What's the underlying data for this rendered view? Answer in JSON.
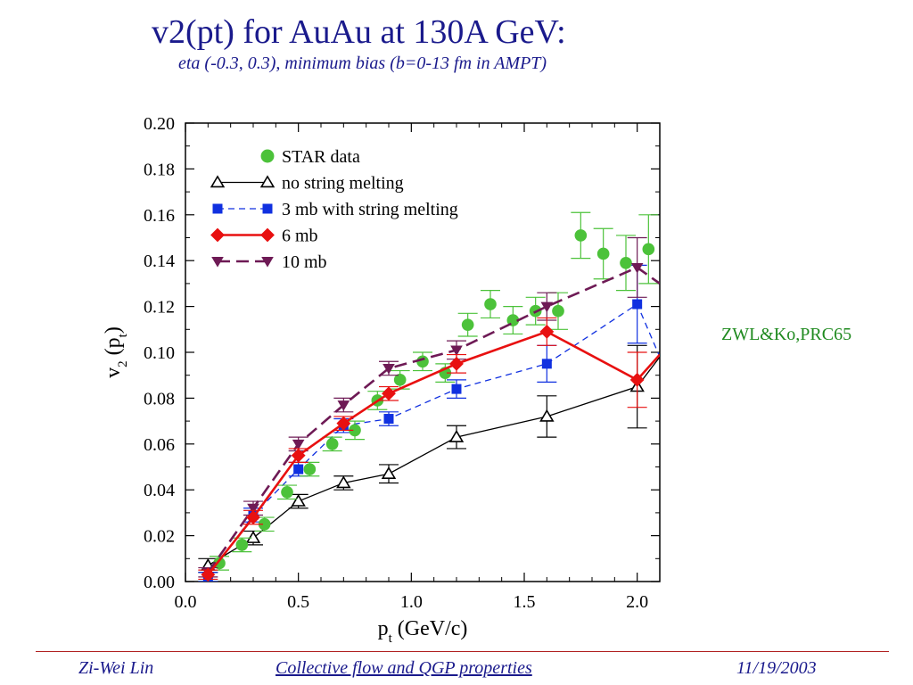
{
  "slide": {
    "title": "v2(pt) for AuAu at 130A GeV:",
    "subtitle": "eta (-0.3, 0.3), minimum bias (b=0-13 fm in AMPT)",
    "reference": "ZWL&Ko,PRC65",
    "footer": {
      "left": "Zi-Wei Lin",
      "center": "Collective flow and QGP properties",
      "right": "11/19/2003"
    }
  },
  "chart_data": {
    "type": "scatter",
    "xlabel": "p_t (GeV/c)",
    "ylabel": "v_2 (p_t)",
    "xlim": [
      0.0,
      2.1
    ],
    "ylim": [
      0.0,
      0.2
    ],
    "xticks": [
      "0.0",
      "0.5",
      "1.0",
      "1.5",
      "2.0"
    ],
    "yticks": [
      "0.00",
      "0.02",
      "0.04",
      "0.06",
      "0.08",
      "0.10",
      "0.12",
      "0.14",
      "0.16",
      "0.18",
      "0.20"
    ],
    "legend_position": "top-left",
    "series": [
      {
        "name": "STAR data",
        "color": "#4cc23a",
        "marker": "circle",
        "line": "none",
        "x": [
          0.15,
          0.25,
          0.35,
          0.45,
          0.55,
          0.65,
          0.75,
          0.85,
          0.95,
          1.05,
          1.15,
          1.25,
          1.35,
          1.45,
          1.55,
          1.65,
          1.75,
          1.85,
          1.95,
          2.05
        ],
        "y": [
          0.008,
          0.016,
          0.025,
          0.039,
          0.049,
          0.06,
          0.066,
          0.079,
          0.088,
          0.096,
          0.091,
          0.112,
          0.121,
          0.114,
          0.118,
          0.118,
          0.151,
          0.143,
          0.139,
          0.145
        ],
        "err": [
          0.003,
          0.003,
          0.003,
          0.003,
          0.003,
          0.003,
          0.004,
          0.004,
          0.004,
          0.004,
          0.004,
          0.005,
          0.006,
          0.006,
          0.006,
          0.008,
          0.01,
          0.011,
          0.012,
          0.015
        ]
      },
      {
        "name": "no string melting",
        "color": "#000000",
        "marker": "triangle-up-open",
        "line": "solid",
        "x": [
          0.1,
          0.3,
          0.5,
          0.7,
          0.9,
          1.2,
          1.6,
          2.0,
          2.1
        ],
        "y": [
          0.007,
          0.019,
          0.035,
          0.043,
          0.047,
          0.063,
          0.072,
          0.085,
          0.098
        ],
        "err": [
          0.003,
          0.003,
          0.003,
          0.003,
          0.004,
          0.005,
          0.009,
          0.018,
          null
        ]
      },
      {
        "name": "3 mb with string melting",
        "color": "#1030e0",
        "marker": "square",
        "line": "dashed",
        "x": [
          0.1,
          0.3,
          0.5,
          0.7,
          0.9,
          1.2,
          1.6,
          2.0,
          2.1
        ],
        "y": [
          0.002,
          0.029,
          0.049,
          0.068,
          0.071,
          0.084,
          0.095,
          0.121,
          0.098
        ],
        "err": [
          0.002,
          0.003,
          0.003,
          0.003,
          0.003,
          0.004,
          0.008,
          0.017,
          null
        ]
      },
      {
        "name": "6 mb",
        "color": "#e81010",
        "marker": "diamond",
        "line": "solid-thick",
        "x": [
          0.1,
          0.3,
          0.5,
          0.7,
          0.9,
          1.2,
          1.6,
          2.0,
          2.1
        ],
        "y": [
          0.003,
          0.028,
          0.055,
          0.069,
          0.082,
          0.095,
          0.109,
          0.088,
          0.099
        ],
        "err": [
          0.002,
          0.003,
          0.003,
          0.003,
          0.003,
          0.004,
          0.006,
          0.012,
          null
        ]
      },
      {
        "name": "10 mb",
        "color": "#6e1a55",
        "marker": "triangle-down",
        "line": "long-dash",
        "x": [
          0.1,
          0.3,
          0.5,
          0.7,
          0.9,
          1.2,
          1.6,
          2.0,
          2.1
        ],
        "y": [
          0.004,
          0.032,
          0.06,
          0.077,
          0.093,
          0.101,
          0.12,
          0.137,
          0.13
        ],
        "err": [
          0.002,
          0.003,
          0.003,
          0.003,
          0.003,
          0.004,
          0.006,
          0.013,
          null
        ]
      }
    ]
  }
}
